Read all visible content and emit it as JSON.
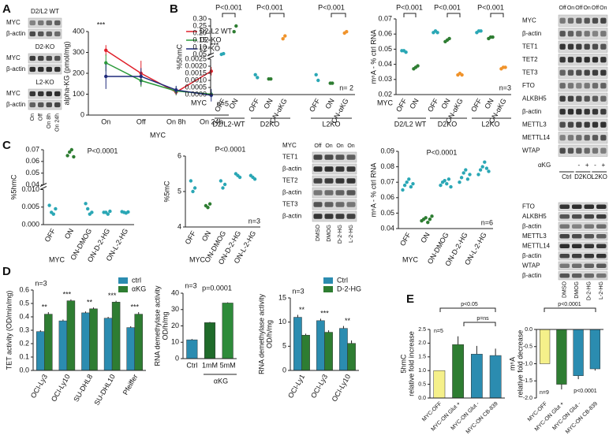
{
  "letters": [
    "A",
    "B",
    "C",
    "D",
    "E"
  ],
  "chart_data": [
    {
      "type": "line",
      "ylabel": "alpha-KG (pmol/mg)",
      "x_label": "MYC",
      "categories": [
        "On",
        "Off",
        "On 8h",
        "On 24h"
      ],
      "series": [
        {
          "name": "D2-L2 WT",
          "color": "#e0202a",
          "values": [
            310,
            200,
            110,
            210
          ],
          "errors": [
            25,
            60,
            15,
            20
          ]
        },
        {
          "name": "D2-KO",
          "color": "#2a9a3a",
          "values": [
            250,
            165,
            115,
            100
          ],
          "errors": [
            40,
            30,
            20,
            15
          ]
        },
        {
          "name": "L2-KO",
          "color": "#1f2a7a",
          "values": [
            185,
            185,
            120,
            95
          ],
          "errors": [
            60,
            40,
            20,
            30
          ]
        }
      ],
      "ylim": [
        0,
        400
      ],
      "yticks": [
        0,
        100,
        200,
        300,
        400
      ],
      "annotations": [
        "***",
        "***",
        "n=5"
      ]
    },
    {
      "type": "dot",
      "ylabel": "%5hmC",
      "x_label": "MYC",
      "categories": [
        "OFF",
        "ON",
        "OFF",
        "ON",
        "ON-αKG",
        "OFF",
        "ON",
        "ON-αKG"
      ],
      "colors": [
        "#2aa7b5",
        "#2e7d32",
        "#2aa7b5",
        "#2e7d32",
        "#f0932b",
        "#2aa7b5",
        "#2e7d32",
        "#f0932b"
      ],
      "points": [
        [
          0.05,
          0.055
        ],
        [
          0.21,
          0.25
        ],
        [
          0.0014,
          0.0012
        ],
        [
          0.0011,
          0.0011
        ],
        [
          0.16,
          0.18
        ],
        [
          0.0014,
          0.001
        ],
        [
          0.0008,
          0.0008
        ],
        [
          0.2,
          0.21
        ]
      ],
      "axis_segments": [
        {
          "ylim": [
            0,
            0.0025
          ],
          "yticks": [
            {
              "value": 0,
              "label": "0.0000"
            },
            0.0005,
            {
              "value": 0.001,
              "label": "0.0010"
            },
            0.0015,
            {
              "value": 0.002,
              "label": "0.0020"
            },
            0.0025
          ]
        },
        {
          "ylim": [
            0.05,
            0.3
          ],
          "yticks": [
            0.05,
            {
              "value": 0.1,
              "label": "0.10"
            },
            0.15,
            {
              "value": 0.2,
              "label": "0.20"
            },
            0.25,
            {
              "value": 0.3,
              "label": "0.30"
            }
          ]
        }
      ],
      "group_labels": [
        "D2/L2-WT",
        "D2KO",
        "L2KO"
      ],
      "annotations": [
        "P<0.001",
        "P<0.001",
        "P<0.001",
        "n= 2"
      ]
    },
    {
      "type": "dot",
      "ylabel": "m⁶A - % ctrl RNA",
      "x_label": "MYC",
      "categories": [
        "OFF",
        "ON",
        "OFF",
        "ON",
        "ON-αKG",
        "OFF",
        "ON",
        "ON-αKG"
      ],
      "colors": [
        "#2aa7b5",
        "#2e7d32",
        "#2aa7b5",
        "#2e7d32",
        "#f0932b",
        "#2aa7b5",
        "#2e7d32",
        "#f0932b"
      ],
      "points": [
        [
          0.049,
          0.049,
          0.048
        ],
        [
          0.037,
          0.038,
          0.039
        ],
        [
          0.061,
          0.062,
          0.061
        ],
        [
          0.055,
          0.056,
          0.057
        ],
        [
          0.033,
          0.034,
          0.033
        ],
        [
          0.061,
          0.062,
          0.062
        ],
        [
          0.057,
          0.058,
          0.058
        ],
        [
          0.037,
          0.038,
          0.038
        ]
      ],
      "ylim": [
        0.02,
        0.07
      ],
      "yticks": [
        0.02,
        0.03,
        0.04,
        0.05,
        0.06,
        0.07
      ],
      "group_labels": [
        "D2/L2 WT",
        "D2KO",
        "L2KO"
      ],
      "annotations": [
        "P<0.001",
        "P<0.001",
        "P<0.001",
        "n=3"
      ]
    },
    {
      "type": "dot",
      "ylabel": "%5hmC",
      "x_label": "MYC",
      "categories": [
        "OFF",
        "ON",
        "ON-DMOG",
        "ON-D-2-HG",
        "ON-L-2-HG"
      ],
      "colors": [
        "#2aa7b5",
        "#2e7d32",
        "#2aa7b5",
        "#2aa7b5",
        "#2aa7b5"
      ],
      "points": [
        [
          0.0055,
          0.0035,
          0.003,
          0.0045
        ],
        [
          0.065,
          0.068,
          0.07,
          0.064
        ],
        [
          0.006,
          0.0045,
          0.003,
          0.0035
        ],
        [
          0.0035,
          0.0035,
          0.003,
          0.0038
        ],
        [
          0.0037,
          0.0035,
          0.0033,
          0.0036
        ]
      ],
      "axis_segments": [
        {
          "ylim": [
            0,
            0.01
          ],
          "yticks": [
            {
              "value": 0,
              "label": "0.000"
            },
            0.005,
            {
              "value": 0.01,
              "label": "0.010"
            }
          ]
        },
        {
          "ylim": [
            0.04,
            0.07
          ],
          "yticks": [
            0.04,
            0.05,
            0.06,
            0.07
          ]
        }
      ],
      "annotations": [
        "P<0.0001"
      ]
    },
    {
      "type": "dot",
      "ylabel": "%5mC",
      "x_label": "MYC",
      "categories": [
        "OFF",
        "ON",
        "ON-DMOG",
        "ON-D-2-HG",
        "ON-L-2-HG"
      ],
      "colors": [
        "#2aa7b5",
        "#2e7d32",
        "#2aa7b5",
        "#2aa7b5",
        "#2aa7b5"
      ],
      "points": [
        [
          5.3,
          5.0,
          5.1
        ],
        [
          4.6,
          4.55,
          4.65
        ],
        [
          5.3,
          5.1,
          5.2
        ],
        [
          5.5,
          5.45,
          5.4
        ],
        [
          5.45,
          5.4,
          5.35
        ]
      ],
      "ylim": [
        4,
        6
      ],
      "yticks": [
        4,
        5,
        6
      ],
      "annotations": [
        "P<0.0001",
        "n=3"
      ]
    },
    {
      "type": "dot",
      "ylabel": "m⁶A - % ctrl RNA",
      "x_label": "MYC",
      "categories": [
        "OFF",
        "ON",
        "ON-DMOG",
        "ON-D-2-HG",
        "ON-L-2-HG"
      ],
      "colors": [
        "#2aa7b5",
        "#2e7d32",
        "#2aa7b5",
        "#2aa7b5",
        "#2aa7b5"
      ],
      "points": [
        [
          0.065,
          0.068,
          0.07,
          0.072,
          0.067,
          0.069
        ],
        [
          0.045,
          0.046,
          0.047,
          0.044,
          0.046,
          0.048
        ],
        [
          0.068,
          0.07,
          0.071,
          0.069,
          0.072,
          0.067
        ],
        [
          0.07,
          0.073,
          0.076,
          0.078,
          0.072,
          0.075
        ],
        [
          0.075,
          0.078,
          0.08,
          0.083,
          0.079,
          0.077
        ]
      ],
      "ylim": [
        0.04,
        0.09
      ],
      "yticks": [
        0.04,
        0.05,
        0.06,
        0.07,
        0.08,
        0.09
      ],
      "annotations": [
        "P<0.0001",
        "n=6"
      ]
    },
    {
      "type": "bar",
      "ylabel": "TET activity (OD/min/mg)",
      "categories": [
        "OCI-Ly3",
        "OCI-Ly10",
        "SU-DHL8",
        "SU-DHL10",
        "Pfeiffer"
      ],
      "series": [
        {
          "name": "ctrl",
          "color": "#2b8cb0",
          "values": [
            0.29,
            0.37,
            0.43,
            0.39,
            0.32
          ],
          "errors": [
            0.01,
            0.01,
            0.01,
            0.01,
            0.01
          ]
        },
        {
          "name": "αKG",
          "color": "#2e7d32",
          "values": [
            0.42,
            0.52,
            0.46,
            0.51,
            0.42
          ],
          "errors": [
            0.015,
            0.01,
            0.01,
            0.01,
            0.015
          ]
        }
      ],
      "ylim": [
        0,
        0.6
      ],
      "yticks": [
        {
          "value": 0,
          "label": "0.0"
        },
        0.1,
        0.2,
        0.3,
        0.4,
        0.5,
        0.6
      ],
      "stars": [
        "**",
        "***",
        "**",
        "***",
        "***"
      ],
      "annotations": [
        "n=3"
      ]
    },
    {
      "type": "bar",
      "ylabel": [
        "RNA demethylase activity",
        "OD/h/mg"
      ],
      "categories": [
        "Ctrl",
        "1mM",
        "5mM"
      ],
      "values": [
        11.5,
        22,
        34
      ],
      "errors": [
        0.5,
        0.4,
        0.4
      ],
      "colors": [
        "#2b8cb0",
        "#1f6b2a",
        "#2e8b3a"
      ],
      "ylim": [
        0,
        40
      ],
      "yticks": [
        0,
        10,
        20,
        30,
        40
      ],
      "x_group_label": "αKG",
      "annotations": [
        "n=3",
        "p=0.0001"
      ]
    },
    {
      "type": "bar",
      "ylabel": [
        "RNA demethylase activity",
        "OD/h/mg"
      ],
      "categories": [
        "OCI-Ly1",
        "OCI-Ly3",
        "OCI-Ly10"
      ],
      "series": [
        {
          "name": "Ctrl",
          "color": "#2b8cb0",
          "values": [
            11,
            10.3,
            8.7
          ],
          "errors": [
            0.5,
            0.4,
            0.5
          ]
        },
        {
          "name": "D-2-HG",
          "color": "#2e7d32",
          "values": [
            7.3,
            7.9,
            5.6
          ],
          "errors": [
            0.3,
            0.4,
            0.6
          ]
        }
      ],
      "ylim": [
        0,
        15
      ],
      "yticks": [
        0,
        5,
        10,
        15
      ],
      "stars": [
        "**",
        "***",
        "**"
      ],
      "annotations": [
        "n=3"
      ]
    },
    {
      "type": "bar",
      "ylabel": [
        "5hmC",
        "relative fold increase"
      ],
      "categories": [
        "MYC-OFF",
        "MYC-ON Glut +",
        "MYC-ON Glut -",
        "MYC-ON CB-839"
      ],
      "values": [
        1.0,
        1.95,
        1.6,
        1.55
      ],
      "errors": [
        0,
        0.3,
        0.3,
        0.25
      ],
      "colors": [
        "#f5f08a",
        "#2e7d32",
        "#2b8cb0",
        "#2b8cb0"
      ],
      "ylim": [
        0,
        2.5
      ],
      "yticks": [
        {
          "value": 0,
          "label": "0.0"
        },
        0.5,
        {
          "value": 1,
          "label": "1.0"
        },
        1.5,
        {
          "value": 2,
          "label": "2.0"
        },
        2.5
      ],
      "annotations": [
        "p<0.05",
        "p=ns",
        "n=5"
      ]
    },
    {
      "type": "bar",
      "ylabel": [
        "m⁶A",
        "relative fold decrease"
      ],
      "categories": [
        "MYC-OFF",
        "MYC-ON Glut +",
        "MYC-ON Glut -",
        "MYC-ON CB-839"
      ],
      "values": [
        -1.0,
        -1.6,
        -1.35,
        -1.15
      ],
      "errors": [
        0,
        0.15,
        0.1,
        0.05
      ],
      "colors": [
        "#f5f08a",
        "#2e7d32",
        "#2b8cb0",
        "#2b8cb0"
      ],
      "ylim": [
        -2,
        0
      ],
      "yticks": [
        {
          "value": 0,
          "label": "0.0"
        },
        -0.5,
        {
          "value": -1,
          "label": "-1.0"
        },
        -1.5,
        {
          "value": -2,
          "label": "-2.0"
        }
      ],
      "annotations": [
        "p<0.0001",
        "p<0.0001",
        "n=9"
      ]
    }
  ],
  "blots": [
    {
      "title": "D2/L2 WT",
      "rows": [
        "MYC",
        "β-actin"
      ]
    },
    {
      "title": "D2-KO",
      "rows": [
        "MYC",
        "β-actin"
      ]
    },
    {
      "title": "L2-KO",
      "rows": [
        "MYC",
        "β-actin"
      ],
      "lanes": [
        "On",
        "Off",
        "On 8h",
        "On 24h"
      ]
    },
    {
      "header": [
        "Off",
        "On",
        "Off",
        "On",
        "Off",
        "On"
      ],
      "rows": [
        "MYC",
        "β-actin",
        "TET1",
        "TET2",
        "TET3",
        "FTO",
        "ALKBH5",
        "β-actin",
        "METTL3",
        "METTL14",
        "WTAP"
      ],
      "treatment": "αKG",
      "treatment_signs": [
        "-",
        "+",
        "-",
        "+"
      ],
      "lanes": [
        "Ctrl",
        "D2KO",
        "L2KO"
      ]
    },
    {
      "header_label": "MYC",
      "header": [
        "Off",
        "On",
        "On",
        "On"
      ],
      "rows": [
        "TET1",
        "β-actin",
        "TET2",
        "β-actin",
        "TET3",
        "β-actin"
      ],
      "lanes": [
        "DMSO",
        "DMOG",
        "D-2-HG",
        "L-2-HG"
      ]
    },
    {
      "rows": [
        "FTO",
        "ALKBH5",
        "β-actin",
        "METTL3",
        "METTL14",
        "β-actin",
        "WTAP",
        "β-actin"
      ],
      "lanes": [
        "DMSO",
        "DMOG",
        "D-2-HG",
        "L-2-HG"
      ]
    }
  ]
}
